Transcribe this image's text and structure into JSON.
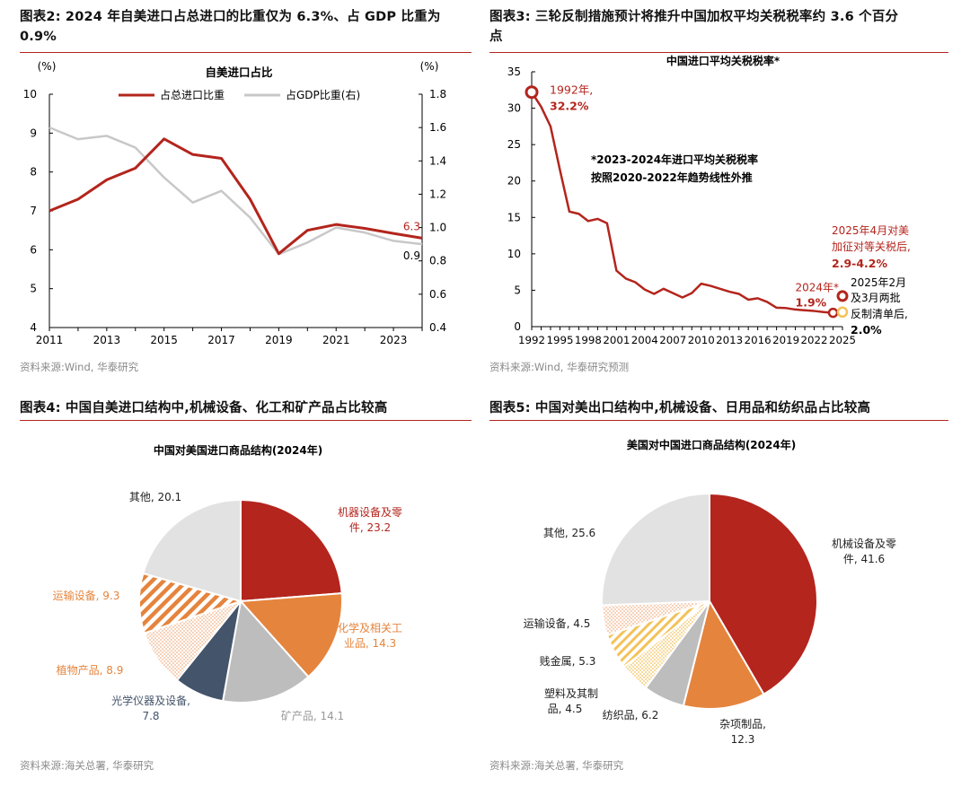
{
  "colors": {
    "red": "#b3251d",
    "gray": "#c8c8c8",
    "orange": "#e5843d",
    "navy": "#44546a",
    "lightgray": "#bdbdbd",
    "pale": "#e2e2e2",
    "yellow": "#f3c25a",
    "apricot": "#f2b388"
  },
  "fig2": {
    "title": "图表2:  2024 年自美进口占总进口的比重仅为 6.3%、占 GDP 比重为 0.9%",
    "title_line1": "图表2:  2024 年自美进口占总进口的比重仅为 6.3%、占 GDP 比重为",
    "title_line2": "0.9%",
    "source": "资料来源:Wind, 华泰研究"
  },
  "fig3": {
    "title_line1": "图表3:  三轮反制措施预计将推升中国加权平均关税税率约 3.6 个百分",
    "title_line2": "点",
    "source": "资料来源:Wind, 华泰研究预测"
  },
  "fig4": {
    "title": "图表4:  中国自美进口结构中,机械设备、化工和矿产品占比较高",
    "source": "资料来源:海关总署, 华泰研究"
  },
  "fig5": {
    "title": "图表5:  中国对美出口结构中,机械设备、日用品和纺织品占比较高",
    "source": "资料来源:海关总署, 华泰研究"
  },
  "chart_data": [
    {
      "id": "fig2",
      "type": "line",
      "title": "自美进口占比",
      "ylabel_left": "(%)",
      "ylabel_right": "(%)",
      "x": [
        2011,
        2012,
        2013,
        2014,
        2015,
        2016,
        2017,
        2018,
        2019,
        2020,
        2021,
        2022,
        2023,
        2024
      ],
      "x_ticks": [
        2011,
        2013,
        2015,
        2017,
        2019,
        2021,
        2023
      ],
      "ylim_left": [
        4,
        10
      ],
      "ylim_right": [
        0.4,
        1.8
      ],
      "y_ticks_left": [
        4,
        5,
        6,
        7,
        8,
        9,
        10
      ],
      "y_ticks_right": [
        0.4,
        0.6,
        0.8,
        1.0,
        1.2,
        1.4,
        1.6,
        1.8
      ],
      "series": [
        {
          "name": "占总进口比重",
          "axis": "left",
          "color": "#b3251d",
          "values": [
            7.0,
            7.3,
            7.8,
            8.1,
            8.85,
            8.45,
            8.35,
            7.3,
            5.9,
            6.5,
            6.65,
            6.55,
            6.42,
            6.3
          ],
          "end_label": "6.3"
        },
        {
          "name": "占GDP比重(右)",
          "axis": "right",
          "color": "#c8c8c8",
          "values": [
            1.6,
            1.53,
            1.55,
            1.48,
            1.3,
            1.15,
            1.22,
            1.06,
            0.84,
            0.91,
            1.0,
            0.97,
            0.92,
            0.9
          ],
          "end_label": "0.9"
        }
      ]
    },
    {
      "id": "fig3",
      "type": "line",
      "title": "中国进口平均关税税率*",
      "x": [
        1992,
        1993,
        1994,
        1995,
        1996,
        1997,
        1998,
        1999,
        2000,
        2001,
        2002,
        2003,
        2004,
        2005,
        2006,
        2007,
        2008,
        2009,
        2010,
        2011,
        2012,
        2013,
        2014,
        2015,
        2016,
        2017,
        2018,
        2019,
        2020,
        2021,
        2022,
        2023,
        2024
      ],
      "values": [
        32.2,
        30.2,
        27.5,
        21.5,
        15.8,
        15.5,
        14.5,
        14.8,
        14.2,
        7.7,
        6.6,
        6.1,
        5.1,
        4.5,
        5.2,
        4.6,
        4.0,
        4.6,
        5.9,
        5.6,
        5.2,
        4.8,
        4.5,
        3.7,
        3.9,
        3.4,
        2.6,
        2.55,
        2.35,
        2.25,
        2.15,
        2.0,
        1.9
      ],
      "x_ticks": [
        1992,
        1995,
        1998,
        2001,
        2004,
        2007,
        2010,
        2013,
        2016,
        2019,
        2022,
        2025
      ],
      "ylim": [
        0,
        35
      ],
      "y_ticks": [
        0,
        5,
        10,
        15,
        20,
        25,
        30,
        35
      ],
      "note_line1": "*2023-2024年进口平均关税税率",
      "note_line2": "按照2020-2022年趋势线性外推",
      "points": [
        {
          "x": 1992,
          "y": 32.2,
          "label_line1": "1992年,",
          "label_line2": "32.2%",
          "color": "#b3251d"
        },
        {
          "x": 2024,
          "y": 1.9,
          "label_line1": "2024年*",
          "label_line2": "1.9%",
          "color": "#b3251d"
        },
        {
          "x": 2025,
          "y": 4.2,
          "label_line1": "2025年4月对美",
          "label_line2": "加征对等关税后,",
          "label_line3": "2.9-4.2%",
          "color": "#b3251d"
        },
        {
          "x": 2025,
          "y": 2.0,
          "label_line1": "2025年2月",
          "label_line2": "及3月两批",
          "label_line3": "反制清单后,",
          "label_line4": "2.0%",
          "color": "#f3c25a"
        }
      ]
    },
    {
      "id": "fig4",
      "type": "pie",
      "title": "中国对美国进口商品结构(2024年)",
      "slices": [
        {
          "label_line1": "机器设备及零",
          "label_line2": "件, 23.2",
          "value": 23.2,
          "fill": "red"
        },
        {
          "label_line1": "化学及相关工",
          "label_line2": "业品, 14.3",
          "value": 14.3,
          "fill": "orange"
        },
        {
          "label_line1": "矿产品, 14.1",
          "label_line2": "",
          "value": 14.1,
          "fill": "lightgray"
        },
        {
          "label_line1": "光学仪器及设备,",
          "label_line2": "7.8",
          "value": 7.8,
          "fill": "navy"
        },
        {
          "label_line1": "植物产品, 8.9",
          "label_line2": "",
          "value": 8.9,
          "fill": "dots-apricot"
        },
        {
          "label_line1": "运输设备, 9.3",
          "label_line2": "",
          "value": 9.3,
          "fill": "stripes-orange"
        },
        {
          "label_line1": "其他, 20.1",
          "label_line2": "",
          "value": 20.1,
          "fill": "pale"
        }
      ]
    },
    {
      "id": "fig5",
      "type": "pie",
      "title": "美国对中国进口商品结构(2024年)",
      "slices": [
        {
          "label_line1": "机械设备及零",
          "label_line2": "件, 41.6",
          "value": 41.6,
          "fill": "red"
        },
        {
          "label_line1": "杂项制品,",
          "label_line2": "12.3",
          "value": 12.3,
          "fill": "orange"
        },
        {
          "label_line1": "纺织品, 6.2",
          "label_line2": "",
          "value": 6.2,
          "fill": "lightgray"
        },
        {
          "label_line1": "塑料及其制",
          "label_line2": "品, 4.5",
          "value": 4.5,
          "fill": "dots-yellow"
        },
        {
          "label_line1": "贱金属, 5.3",
          "label_line2": "",
          "value": 5.3,
          "fill": "stripes-yellow"
        },
        {
          "label_line1": "运输设备, 4.5",
          "label_line2": "",
          "value": 4.5,
          "fill": "dots-apricot"
        },
        {
          "label_line1": "其他, 25.6",
          "label_line2": "",
          "value": 25.6,
          "fill": "pale"
        }
      ]
    }
  ]
}
